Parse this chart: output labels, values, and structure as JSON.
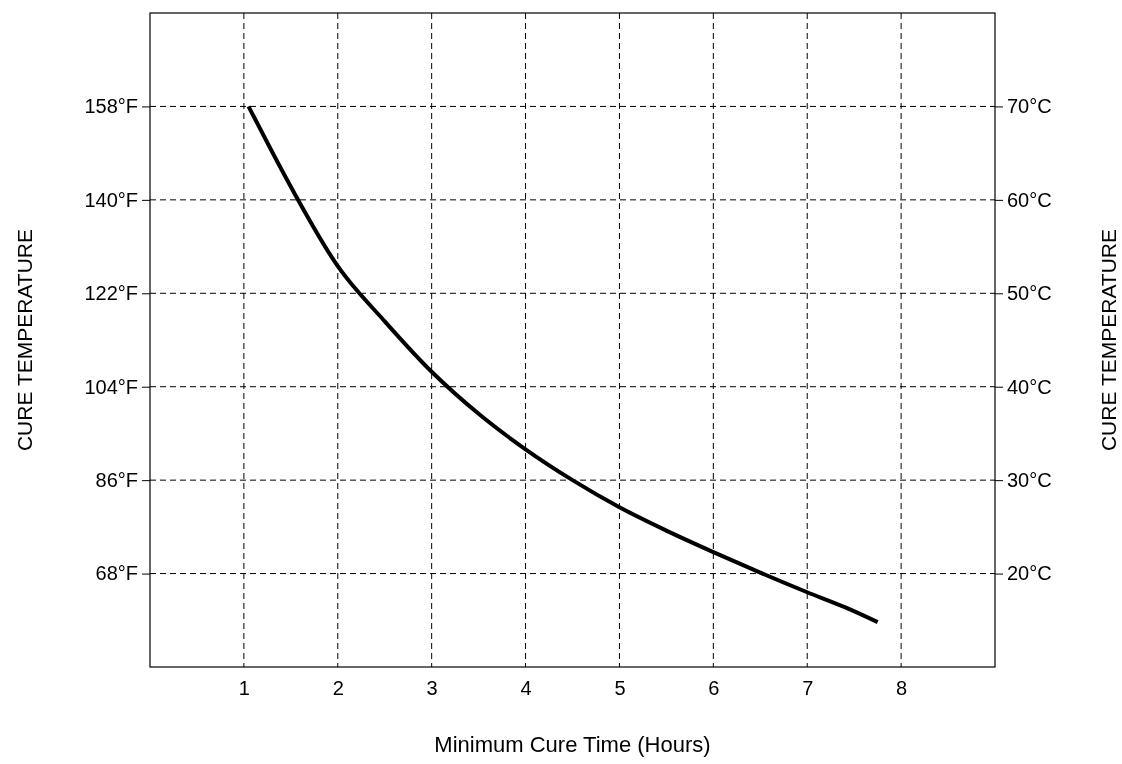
{
  "chart_data": {
    "type": "line",
    "xlabel": "Minimum Cure Time (Hours)",
    "ylabel": "CURE TEMPERATURE",
    "y2label": "CURE TEMPERATURE",
    "xlim": [
      0,
      9
    ],
    "xticks": [
      1,
      2,
      3,
      4,
      5,
      6,
      7,
      8
    ],
    "ylim": [
      50,
      176
    ],
    "yticks": [
      {
        "value": 68,
        "label": "68°F"
      },
      {
        "value": 86,
        "label": "86°F"
      },
      {
        "value": 104,
        "label": "104°F"
      },
      {
        "value": 122,
        "label": "122°F"
      },
      {
        "value": 140,
        "label": "140°F"
      },
      {
        "value": 158,
        "label": "158°F"
      }
    ],
    "y2lim": [
      10,
      80
    ],
    "y2ticks": [
      {
        "value": 20,
        "label": "20°C"
      },
      {
        "value": 30,
        "label": "30°C"
      },
      {
        "value": 40,
        "label": "40°C"
      },
      {
        "value": 50,
        "label": "50°C"
      },
      {
        "value": 60,
        "label": "60°C"
      },
      {
        "value": 70,
        "label": "70°C"
      }
    ],
    "grid": true,
    "line_style": "solid",
    "marker": "none",
    "series": [
      {
        "color": "#000000",
        "axis": "y2",
        "x": [
          1.05,
          1.5,
          2,
          2.5,
          3,
          3.5,
          4,
          4.5,
          5,
          5.5,
          6,
          6.5,
          7,
          7.4,
          7.75
        ],
        "values": [
          70,
          61.4,
          52.9,
          47,
          41.6,
          37.1,
          33.3,
          30,
          27.1,
          24.6,
          22.3,
          20.1,
          18,
          16.4,
          14.8
        ]
      }
    ]
  }
}
